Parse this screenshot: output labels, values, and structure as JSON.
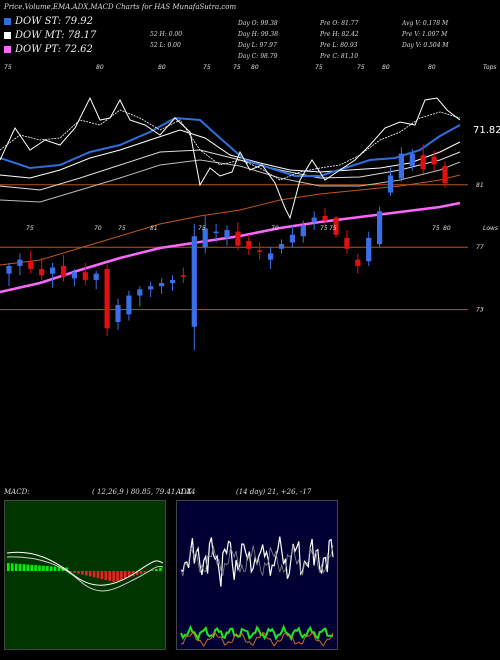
{
  "page_title": "Price,Volume,EMA,ADX,MACD Charts for HAS MunafaSutra.com",
  "legend": [
    {
      "label": "DOW ST: 79.92",
      "color": "#2f6fdd"
    },
    {
      "label": "DOW MT: 78.17",
      "color": "#ffffff"
    },
    {
      "label": "DOW PT: 72.62",
      "color": "#ff66ff"
    }
  ],
  "stats": {
    "col1": [
      "52 H: 0.00",
      "52 L: 0.00"
    ],
    "col2": [
      "Day O: 99.38",
      "Day H: 99.38",
      "Day L: 97.97",
      "Day C: 98.79"
    ],
    "col3": [
      "Pre O: 81.77",
      "Pre H: 82.42",
      "Pre L: 80.93",
      "Pre C: 81.10"
    ],
    "col4": [
      "Avg V: 0.178 M",
      "Pre V: 1.097 M",
      "Day V: 0.504 M"
    ]
  },
  "price_label": "71.82",
  "indicators": {
    "macd_label": "MACD:",
    "macd_values": "( 12,26,9 ) 80.85, 79.41, 1.44",
    "adx_label": "ADX",
    "adx_values": "(14 day) 21, +26, -17"
  },
  "chart_data": {
    "type": "candlestick",
    "y_scale": {
      "min": 69,
      "max": 89
    },
    "price_levels": [
      81,
      77,
      73
    ],
    "top_axis_labels": [
      "75",
      "80",
      "80",
      "75",
      "75",
      "80",
      "75",
      "75",
      "80",
      "80",
      "Tops"
    ],
    "lower_axis_labels": [
      "75",
      "70",
      "75",
      "81",
      "75",
      "70",
      "75",
      "75",
      "75",
      "80",
      "Lows"
    ],
    "candles": [
      {
        "o": 75.3,
        "h": 76.0,
        "l": 74.5,
        "c": 75.8
      },
      {
        "o": 75.8,
        "h": 76.6,
        "l": 75.2,
        "c": 76.2
      },
      {
        "o": 76.1,
        "h": 76.8,
        "l": 75.3,
        "c": 75.6
      },
      {
        "o": 75.6,
        "h": 76.3,
        "l": 74.9,
        "c": 75.2
      },
      {
        "o": 75.3,
        "h": 76.0,
        "l": 74.4,
        "c": 75.7
      },
      {
        "o": 75.8,
        "h": 76.5,
        "l": 74.8,
        "c": 75.1
      },
      {
        "o": 75.0,
        "h": 75.6,
        "l": 74.5,
        "c": 75.4
      },
      {
        "o": 75.4,
        "h": 76.0,
        "l": 74.6,
        "c": 74.9
      },
      {
        "o": 74.9,
        "h": 75.5,
        "l": 74.3,
        "c": 75.3
      },
      {
        "o": 75.6,
        "h": 75.9,
        "l": 71.3,
        "c": 71.8
      },
      {
        "o": 72.2,
        "h": 73.7,
        "l": 71.7,
        "c": 73.3
      },
      {
        "o": 72.7,
        "h": 74.2,
        "l": 72.3,
        "c": 73.9
      },
      {
        "o": 73.9,
        "h": 74.5,
        "l": 73.2,
        "c": 74.3
      },
      {
        "o": 74.3,
        "h": 74.8,
        "l": 73.8,
        "c": 74.5
      },
      {
        "o": 74.5,
        "h": 75.0,
        "l": 74.0,
        "c": 74.7
      },
      {
        "o": 74.7,
        "h": 75.2,
        "l": 74.2,
        "c": 74.9
      },
      {
        "o": 75.2,
        "h": 75.7,
        "l": 74.7,
        "c": 75.1
      },
      {
        "o": 71.9,
        "h": 78.5,
        "l": 70.4,
        "c": 77.7
      },
      {
        "o": 77.0,
        "h": 79.0,
        "l": 76.6,
        "c": 78.2
      },
      {
        "o": 77.9,
        "h": 78.5,
        "l": 77.3,
        "c": 78.0
      },
      {
        "o": 77.6,
        "h": 78.4,
        "l": 77.1,
        "c": 78.1
      },
      {
        "o": 78.0,
        "h": 78.6,
        "l": 76.8,
        "c": 77.1
      },
      {
        "o": 77.4,
        "h": 77.8,
        "l": 76.5,
        "c": 76.9
      },
      {
        "o": 76.8,
        "h": 77.3,
        "l": 76.2,
        "c": 76.7
      },
      {
        "o": 76.2,
        "h": 77.0,
        "l": 75.6,
        "c": 76.6
      },
      {
        "o": 76.9,
        "h": 77.5,
        "l": 76.6,
        "c": 77.2
      },
      {
        "o": 77.3,
        "h": 78.4,
        "l": 77.0,
        "c": 77.8
      },
      {
        "o": 77.7,
        "h": 78.7,
        "l": 77.3,
        "c": 78.4
      },
      {
        "o": 78.6,
        "h": 79.3,
        "l": 78.1,
        "c": 78.9
      },
      {
        "o": 79.0,
        "h": 79.5,
        "l": 78.4,
        "c": 78.7
      },
      {
        "o": 78.9,
        "h": 79.0,
        "l": 77.6,
        "c": 77.8
      },
      {
        "o": 77.6,
        "h": 78.1,
        "l": 76.6,
        "c": 76.9
      },
      {
        "o": 76.2,
        "h": 76.6,
        "l": 75.3,
        "c": 75.8
      },
      {
        "o": 76.1,
        "h": 78.0,
        "l": 75.8,
        "c": 77.6
      },
      {
        "o": 77.2,
        "h": 79.6,
        "l": 77.0,
        "c": 79.3
      },
      {
        "o": 80.5,
        "h": 82.1,
        "l": 80.3,
        "c": 81.6
      },
      {
        "o": 81.4,
        "h": 83.4,
        "l": 81.2,
        "c": 83.0
      },
      {
        "o": 82.2,
        "h": 83.3,
        "l": 81.9,
        "c": 83.0
      },
      {
        "o": 82.9,
        "h": 83.6,
        "l": 81.7,
        "c": 82.0
      },
      {
        "o": 82.8,
        "h": 83.2,
        "l": 81.9,
        "c": 82.3
      },
      {
        "o": 82.2,
        "h": 82.5,
        "l": 80.8,
        "c": 81.1
      }
    ]
  },
  "colors": {
    "up_candle": "#3a6fe8",
    "down_candle": "#e01010",
    "ema_short": "#2f6fdd",
    "ema_mid": "#ffffff",
    "ema_long": "#ff66ff",
    "ema_slow": "#c0561e",
    "level_line": "#b5541d",
    "macd_bg": "#003500",
    "adx_bg": "#000033"
  }
}
